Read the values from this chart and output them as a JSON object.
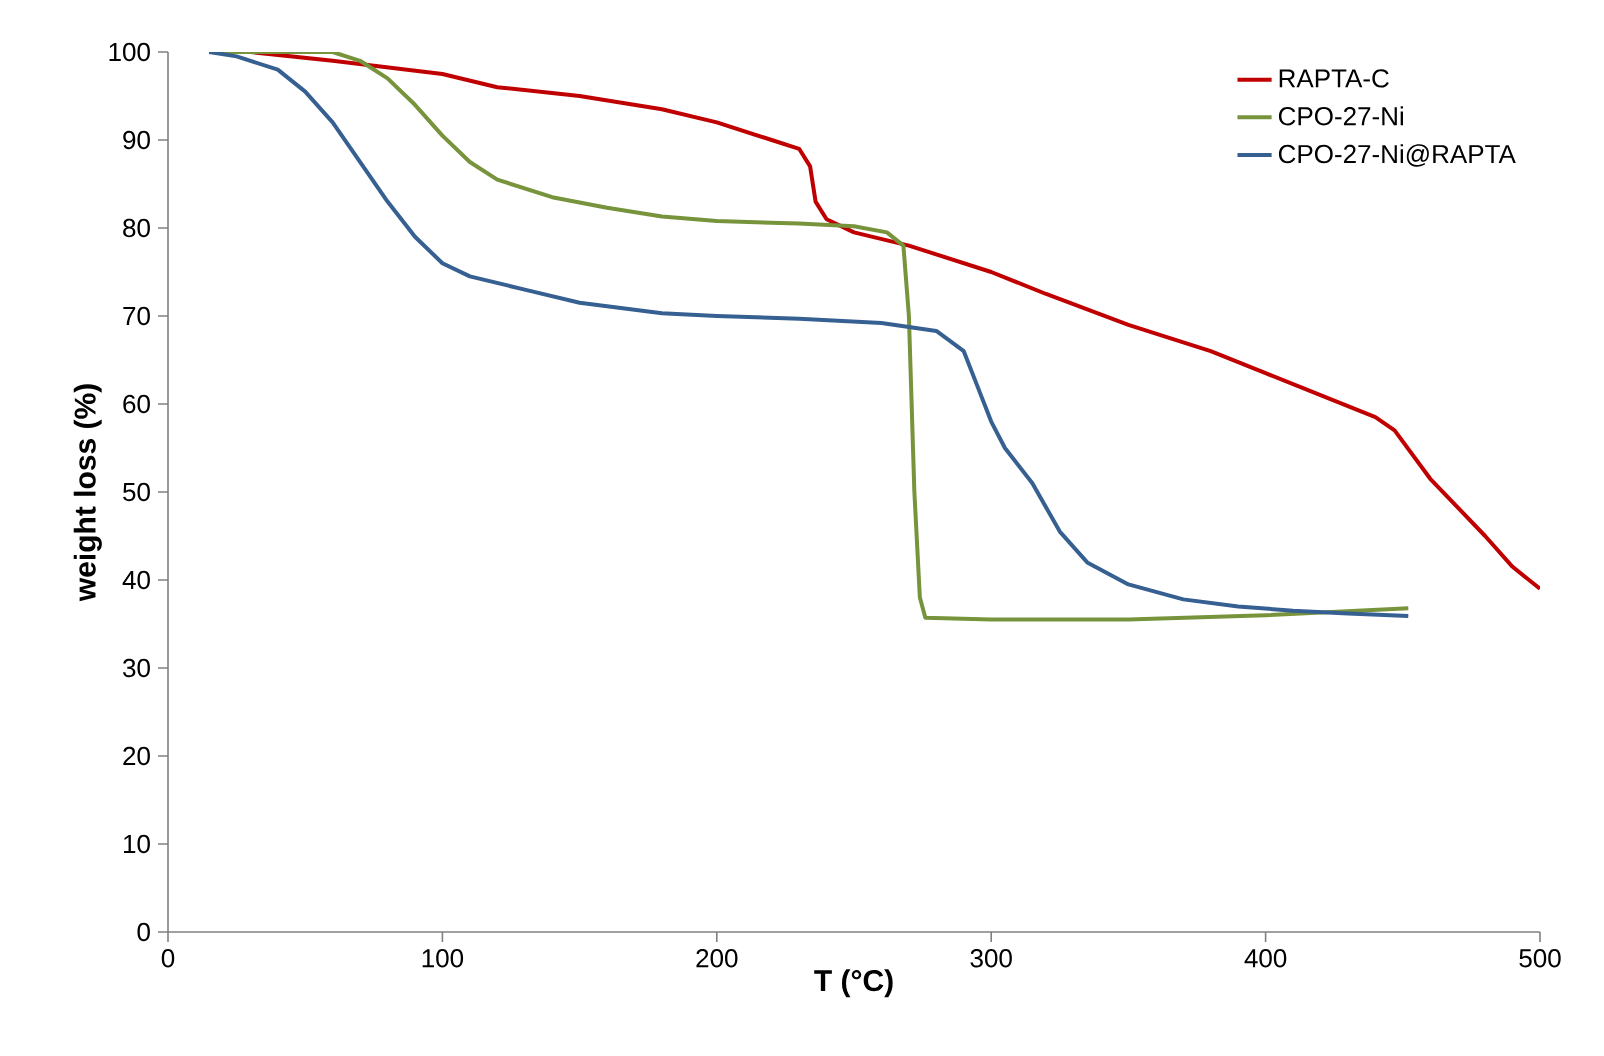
{
  "chart_data": {
    "type": "line",
    "xlabel": "T (°C)",
    "ylabel": "weight loss (%)",
    "xlim": [
      0,
      500
    ],
    "ylim": [
      0,
      100
    ],
    "xticks": [
      0,
      100,
      200,
      300,
      400,
      500
    ],
    "yticks": [
      0,
      10,
      20,
      30,
      40,
      50,
      60,
      70,
      80,
      90,
      100
    ],
    "grid": false,
    "legend": "top right",
    "marker": "none",
    "line_style": "solid",
    "series": [
      {
        "name": "RAPTA-C",
        "color": "#c00000",
        "x": [
          30,
          60,
          100,
          120,
          150,
          180,
          200,
          220,
          230,
          234,
          236,
          240,
          250,
          270,
          300,
          320,
          350,
          380,
          400,
          420,
          440,
          447,
          460,
          480,
          490,
          500
        ],
        "values": [
          100,
          99,
          97.5,
          96,
          95,
          93.5,
          92,
          90,
          89,
          87,
          83,
          81,
          79.5,
          78,
          75,
          72.5,
          69,
          66,
          63.5,
          61,
          58.5,
          57,
          51.5,
          45,
          41.5,
          39
        ]
      },
      {
        "name": "CPO-27-Ni",
        "color": "#77933c",
        "x": [
          15,
          60,
          70,
          80,
          90,
          100,
          110,
          120,
          140,
          160,
          180,
          200,
          230,
          250,
          262,
          268,
          270,
          272,
          274,
          276,
          300,
          350,
          400,
          452
        ],
        "values": [
          100,
          100,
          99,
          97,
          94,
          90.5,
          87.5,
          85.5,
          83.5,
          82.3,
          81.3,
          80.8,
          80.5,
          80.2,
          79.5,
          78,
          70,
          50,
          38,
          35.7,
          35.5,
          35.5,
          36,
          36.8
        ]
      },
      {
        "name": "CPO-27-Ni@RAPTA",
        "color": "#376092",
        "x": [
          15,
          25,
          40,
          50,
          60,
          70,
          80,
          90,
          100,
          110,
          130,
          150,
          180,
          200,
          230,
          260,
          280,
          290,
          295,
          300,
          305,
          315,
          325,
          335,
          350,
          370,
          390,
          410,
          430,
          452
        ],
        "values": [
          100,
          99.5,
          98,
          95.5,
          92,
          87.5,
          83,
          79,
          76,
          74.5,
          73,
          71.5,
          70.3,
          70,
          69.7,
          69.2,
          68.3,
          66,
          62,
          58,
          55,
          51,
          45.5,
          42,
          39.5,
          37.8,
          37,
          36.5,
          36.2,
          35.9
        ]
      }
    ]
  }
}
